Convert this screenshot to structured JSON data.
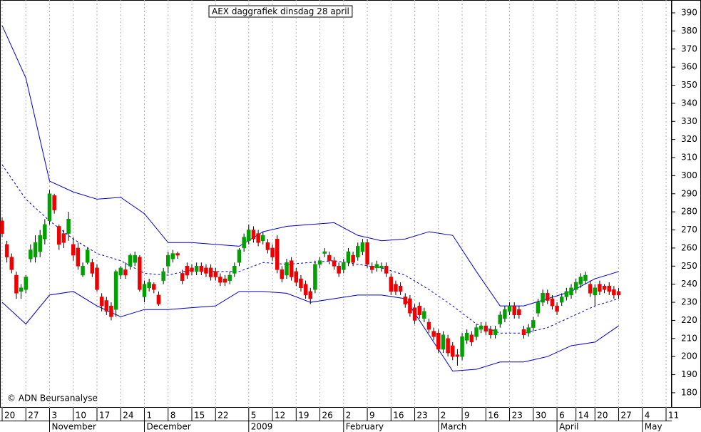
{
  "chart_data": {
    "type": "candlestick",
    "title": "AEX daggrafiek dinsdag 28 april",
    "footer": "© ADN Beursanalyse",
    "up_color": "#00a000",
    "down_color": "#ee0000",
    "wick_color": "#000000",
    "xlim": [
      -0.45,
      141.2
    ],
    "ylim": [
      171.7,
      397.1
    ],
    "yticks": [
      180,
      190,
      200,
      210,
      220,
      230,
      240,
      250,
      260,
      270,
      280,
      290,
      300,
      310,
      320,
      330,
      340,
      350,
      360,
      370,
      380,
      390
    ],
    "xticks": [
      {
        "value": 0,
        "label": "20"
      },
      {
        "value": 5,
        "label": "27"
      },
      {
        "value": 10,
        "label": "3"
      },
      {
        "value": 15,
        "label": "10"
      },
      {
        "value": 20,
        "label": "17"
      },
      {
        "value": 25,
        "label": "24"
      },
      {
        "value": 30,
        "label": "1"
      },
      {
        "value": 35,
        "label": "8"
      },
      {
        "value": 40,
        "label": "15"
      },
      {
        "value": 45,
        "label": "22"
      },
      {
        "value": 52,
        "label": "5"
      },
      {
        "value": 57,
        "label": "12"
      },
      {
        "value": 62,
        "label": "19"
      },
      {
        "value": 67,
        "label": "26"
      },
      {
        "value": 72,
        "label": "2"
      },
      {
        "value": 77,
        "label": "9"
      },
      {
        "value": 82,
        "label": "16"
      },
      {
        "value": 87,
        "label": "23"
      },
      {
        "value": 92,
        "label": "2"
      },
      {
        "value": 97,
        "label": "9"
      },
      {
        "value": 102,
        "label": "16"
      },
      {
        "value": 107,
        "label": "23"
      },
      {
        "value": 112,
        "label": "30"
      },
      {
        "value": 117,
        "label": "6"
      },
      {
        "value": 121,
        "label": "14"
      },
      {
        "value": 125,
        "label": "20"
      },
      {
        "value": 130,
        "label": "27"
      },
      {
        "value": 135,
        "label": "4"
      },
      {
        "value": 140,
        "label": "11"
      }
    ],
    "month_ticks": [
      {
        "value": 10,
        "label": "November"
      },
      {
        "value": 30,
        "label": "December"
      },
      {
        "value": 52,
        "label": "2009"
      },
      {
        "value": 72,
        "label": "February"
      },
      {
        "value": 92,
        "label": "March"
      },
      {
        "value": 117,
        "label": "April"
      },
      {
        "value": 135,
        "label": "May"
      }
    ],
    "grid": true,
    "series": [
      {
        "open": [
          275,
          262,
          255,
          245,
          236,
          237,
          254,
          255,
          258,
          265,
          275,
          289,
          272,
          268,
          268,
          262,
          260,
          245,
          252,
          252,
          249,
          233,
          231,
          228,
          226,
          245,
          248,
          250,
          252,
          255,
          233,
          238,
          240,
          234,
          242,
          250,
          254,
          257,
          246,
          250,
          249,
          247,
          250,
          249,
          249,
          247,
          244,
          243,
          242,
          246,
          252,
          260,
          264,
          270,
          268,
          264,
          263,
          260,
          265,
          248,
          245,
          253,
          247,
          243,
          240,
          236,
          237,
          251,
          257,
          256,
          253,
          250,
          248,
          252,
          256,
          255,
          258,
          263,
          250,
          249,
          249,
          250,
          244,
          240,
          239,
          233,
          232,
          227,
          228,
          221,
          219,
          214,
          213,
          204,
          210,
          206,
          201,
          200,
          209,
          212,
          211,
          215,
          217,
          215,
          212,
          218,
          221,
          225,
          228,
          226,
          215,
          213,
          216,
          224,
          230,
          235,
          232,
          228,
          230,
          233,
          234,
          237,
          240,
          242,
          240,
          234,
          240,
          239,
          239,
          237,
          236
        ],
        "high": [
          277,
          264,
          257,
          247,
          240,
          245,
          262,
          267,
          270,
          276,
          292,
          290,
          273,
          270,
          280,
          266,
          263,
          252,
          260,
          254,
          251,
          235,
          233,
          230,
          248,
          250,
          252,
          257,
          258,
          256,
          242,
          243,
          241,
          236,
          249,
          258,
          259,
          258,
          248,
          252,
          251,
          252,
          252,
          251,
          251,
          249,
          246,
          245,
          247,
          252,
          260,
          268,
          273,
          272,
          270,
          269,
          265,
          262,
          267,
          250,
          254,
          255,
          249,
          245,
          242,
          238,
          253,
          255,
          260,
          258,
          255,
          252,
          254,
          260,
          258,
          263,
          265,
          265,
          252,
          253,
          252,
          252,
          246,
          242,
          241,
          235,
          234,
          229,
          230,
          227,
          221,
          216,
          215,
          214,
          212,
          208,
          204,
          213,
          215,
          214,
          218,
          219,
          219,
          217,
          217,
          225,
          228,
          230,
          230,
          228,
          217,
          218,
          222,
          232,
          237,
          237,
          234,
          230,
          235,
          238,
          240,
          243,
          246,
          247,
          242,
          240,
          242,
          240,
          241,
          239,
          238
        ],
        "low": [
          266,
          252,
          246,
          232,
          232,
          235,
          252,
          252,
          255,
          262,
          273,
          279,
          259,
          260,
          264,
          253,
          248,
          244,
          251,
          244,
          236,
          225,
          223,
          220,
          222,
          243,
          243,
          248,
          250,
          236,
          230,
          236,
          235,
          228,
          240,
          246,
          252,
          254,
          240,
          243,
          245,
          245,
          245,
          244,
          242,
          242,
          239,
          239,
          240,
          244,
          250,
          258,
          262,
          263,
          261,
          262,
          257,
          253,
          246,
          241,
          243,
          242,
          239,
          236,
          232,
          229,
          235,
          249,
          255,
          251,
          248,
          244,
          246,
          250,
          250,
          253,
          256,
          249,
          246,
          247,
          247,
          244,
          234,
          234,
          234,
          227,
          222,
          218,
          221,
          219,
          213,
          209,
          202,
          202,
          200,
          198,
          195,
          198,
          207,
          206,
          209,
          213,
          212,
          210,
          210,
          216,
          219,
          223,
          221,
          221,
          210,
          211,
          214,
          222,
          228,
          229,
          226,
          223,
          228,
          231,
          232,
          235,
          238,
          240,
          233,
          228,
          234,
          235,
          234,
          232,
          232
        ],
        "close": [
          268,
          255,
          248,
          235,
          238,
          244,
          259,
          263,
          267,
          273,
          290,
          281,
          262,
          263,
          276,
          256,
          250,
          250,
          259,
          246,
          237,
          228,
          225,
          222,
          247,
          249,
          245,
          256,
          256,
          237,
          240,
          241,
          237,
          229,
          247,
          256,
          257,
          256,
          242,
          245,
          247,
          250,
          247,
          246,
          244,
          244,
          241,
          241,
          245,
          250,
          259,
          266,
          270,
          265,
          263,
          267,
          259,
          255,
          248,
          243,
          252,
          244,
          241,
          238,
          234,
          232,
          251,
          253,
          258,
          253,
          250,
          246,
          252,
          258,
          252,
          261,
          263,
          251,
          248,
          251,
          250,
          246,
          236,
          236,
          236,
          229,
          224,
          220,
          223,
          225,
          215,
          211,
          204,
          212,
          202,
          200,
          200,
          211,
          213,
          208,
          216,
          217,
          214,
          212,
          215,
          223,
          226,
          228,
          223,
          223,
          212,
          216,
          220,
          230,
          235,
          231,
          228,
          225,
          233,
          236,
          238,
          241,
          244,
          245,
          235,
          238,
          236,
          237,
          236,
          234,
          234
        ]
      }
    ],
    "band_x": [
      0,
      5,
      10,
      15,
      20,
      25,
      30,
      35,
      40,
      45,
      50,
      55,
      60,
      65,
      70,
      75,
      80,
      85,
      90,
      95,
      100,
      105,
      110,
      115,
      120,
      125,
      130
    ],
    "bands": [
      {
        "color": "#0000cc",
        "dashed": false,
        "values": [
          383,
          354,
          297,
          291,
          287,
          288,
          279,
          263,
          263,
          262,
          261,
          269,
          272,
          273,
          274,
          267,
          264,
          265,
          269,
          267,
          247,
          228,
          228,
          232,
          236,
          243,
          247
        ]
      },
      {
        "color": "#0000cc",
        "dashed": true,
        "values": [
          306,
          287,
          275,
          265,
          257,
          253,
          246,
          245,
          248,
          247,
          247,
          252,
          251,
          252,
          253,
          251,
          249,
          245,
          237,
          228,
          218,
          213,
          213,
          216,
          222,
          228,
          232
        ]
      },
      {
        "color": "#0000cc",
        "dashed": false,
        "values": [
          230,
          218,
          234,
          236,
          228,
          222,
          226,
          226,
          227,
          228,
          236,
          236,
          235,
          230,
          232,
          234,
          234,
          232,
          212,
          192,
          193,
          197,
          197,
          200,
          206,
          208,
          217
        ]
      }
    ]
  }
}
